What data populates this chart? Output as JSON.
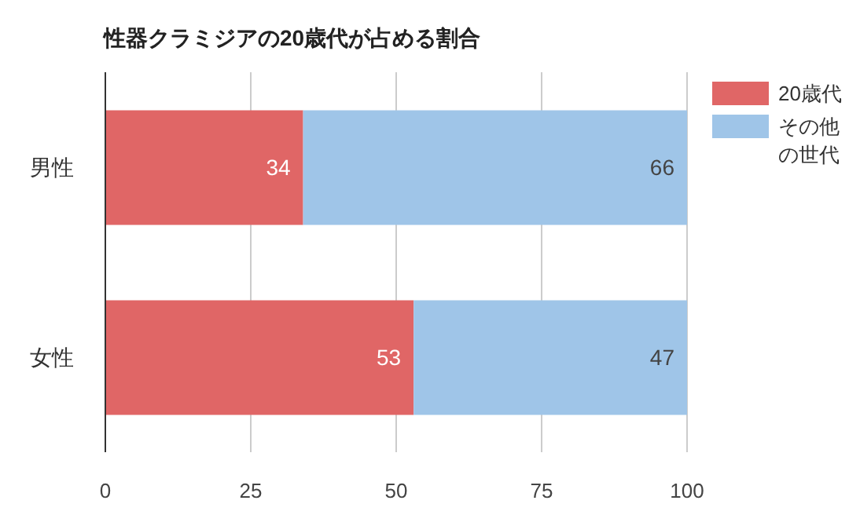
{
  "chart_data": {
    "type": "bar",
    "orientation": "horizontal",
    "stacked": true,
    "title": "性器クラミジアの20歳代が占める割合",
    "categories": [
      "男性",
      "女性"
    ],
    "series": [
      {
        "name": "20歳代",
        "color": "#e06666",
        "values": [
          34,
          53
        ]
      },
      {
        "name": "その他の世代",
        "color": "#9fc5e8",
        "values": [
          66,
          47
        ]
      }
    ],
    "xlim": [
      0,
      100
    ],
    "xticks": [
      0,
      25,
      50,
      75,
      100
    ],
    "grid": "x",
    "legend": "top right",
    "data_labels": true
  }
}
